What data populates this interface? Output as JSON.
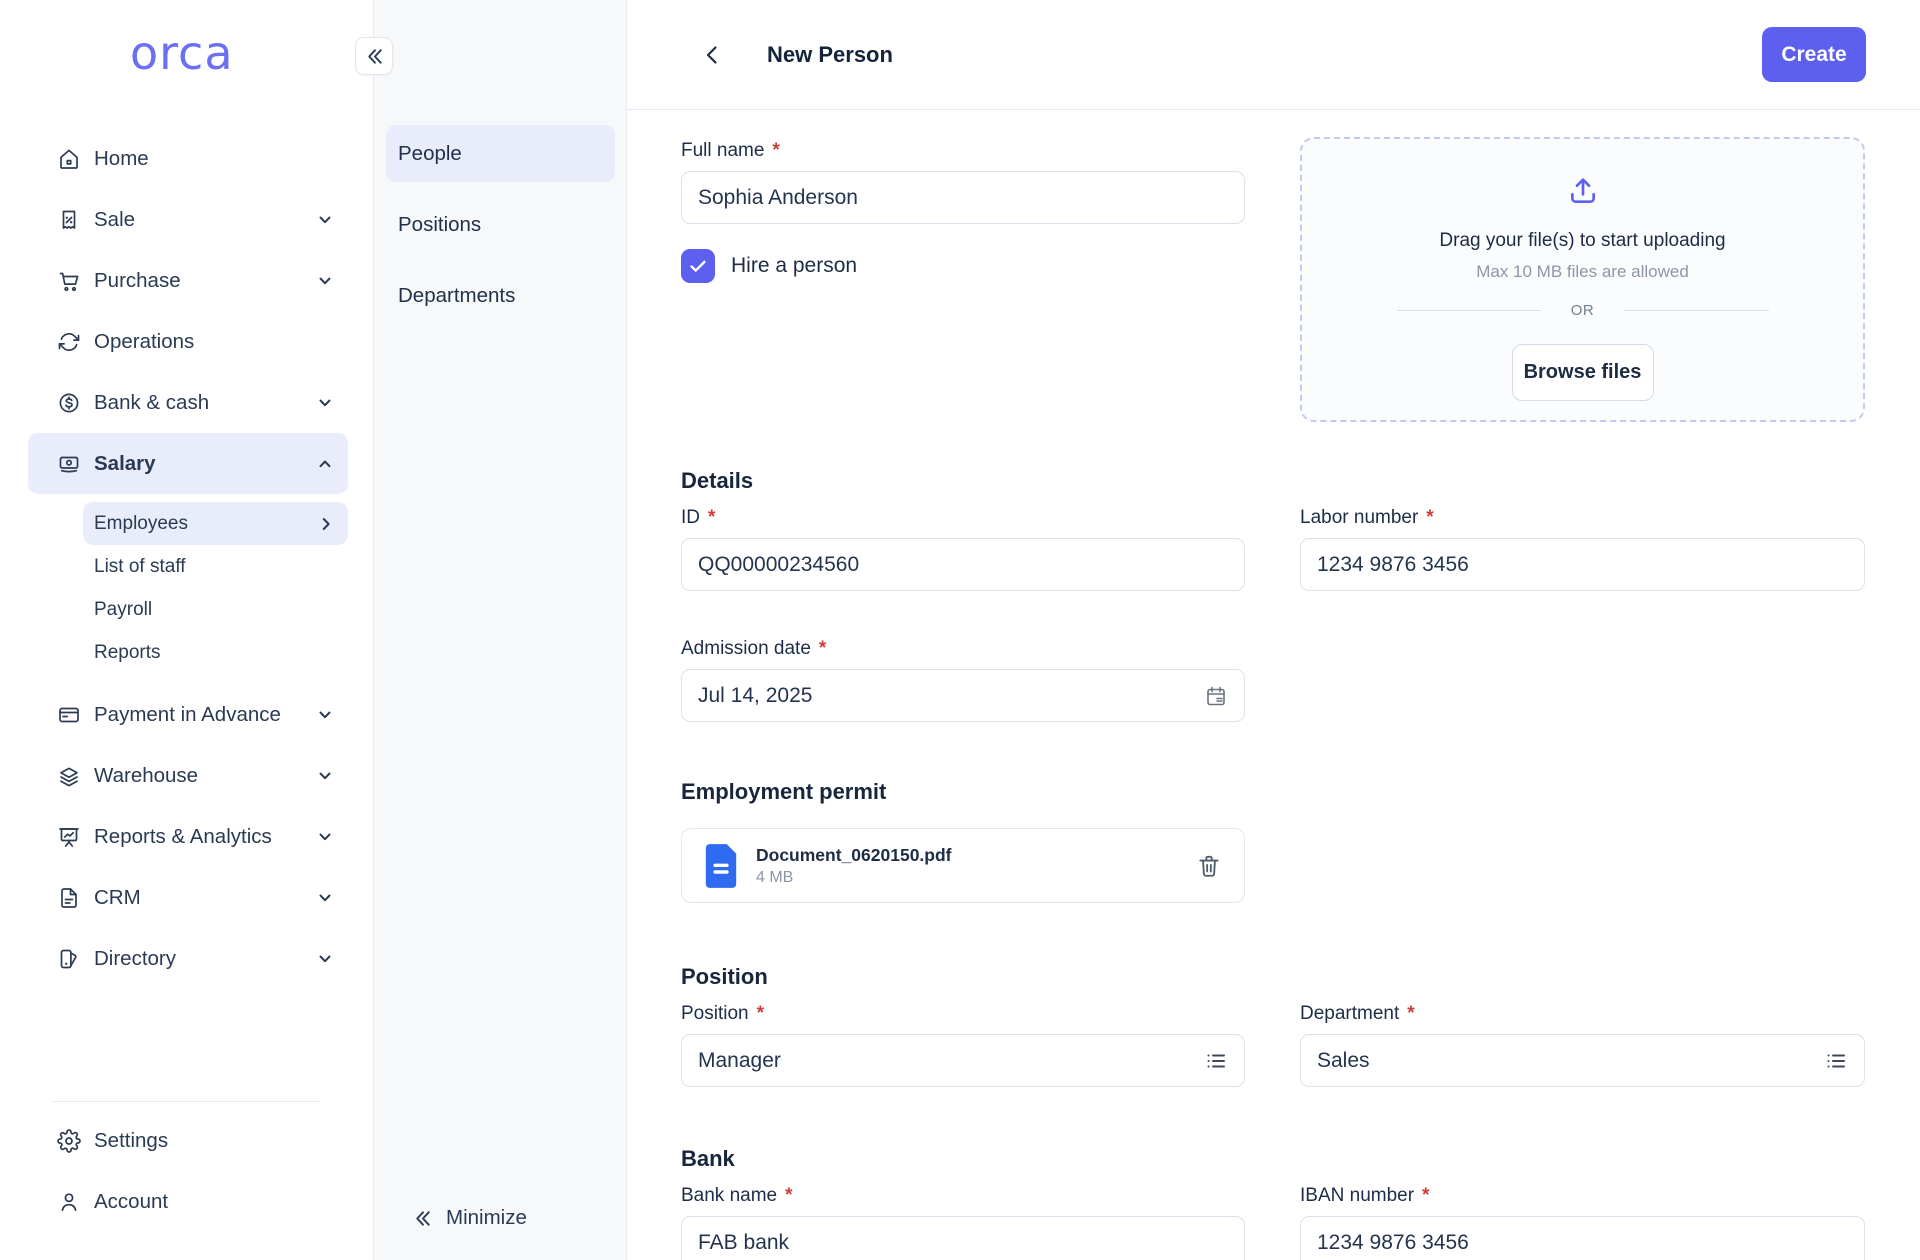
{
  "brand": {
    "logo_text": "orca",
    "logo_color": "#6A6FF3"
  },
  "colors": {
    "accent": "#5D5FEF",
    "highlight": "#E9EDFB",
    "doc_blue": "#2F6BF0",
    "required_red": "#D03C3C"
  },
  "sidebar": {
    "items": [
      {
        "label": "Home",
        "icon": "home"
      },
      {
        "label": "Sale",
        "icon": "sale",
        "chevron": "down"
      },
      {
        "label": "Purchase",
        "icon": "purchase",
        "chevron": "down"
      },
      {
        "label": "Operations",
        "icon": "operations"
      },
      {
        "label": "Bank & cash",
        "icon": "bank-cash",
        "chevron": "down"
      },
      {
        "label": "Salary",
        "icon": "salary",
        "chevron": "up",
        "active": true,
        "children": [
          {
            "label": "Employees",
            "active": true,
            "chevron": "right"
          },
          {
            "label": "List of staff"
          },
          {
            "label": "Payroll"
          },
          {
            "label": "Reports"
          }
        ]
      },
      {
        "label": "Payment in Advance",
        "icon": "payment-advance",
        "chevron": "down"
      },
      {
        "label": "Warehouse",
        "icon": "warehouse",
        "chevron": "down"
      },
      {
        "label": "Reports & Analytics",
        "icon": "reports-analytics",
        "chevron": "down"
      },
      {
        "label": "CRM",
        "icon": "crm",
        "chevron": "down"
      },
      {
        "label": "Directory",
        "icon": "directory",
        "chevron": "down"
      }
    ],
    "footer_items": [
      {
        "label": "Settings",
        "icon": "settings"
      },
      {
        "label": "Account",
        "icon": "account"
      }
    ]
  },
  "subpanel": {
    "items": [
      {
        "label": "People",
        "active": true
      },
      {
        "label": "Positions"
      },
      {
        "label": "Departments"
      }
    ],
    "minimize_label": "Minimize"
  },
  "header": {
    "title": "New Person",
    "create_label": "Create"
  },
  "form": {
    "required_marker": "*",
    "full_name": {
      "label": "Full name",
      "value": "Sophia Anderson"
    },
    "hire": {
      "label": "Hire a person",
      "checked": true
    },
    "upload": {
      "title": "Drag your file(s) to start uploading",
      "subtitle": "Max 10 MB files are allowed",
      "or_text": "OR",
      "browse_label": "Browse files"
    },
    "details": {
      "heading": "Details",
      "id": {
        "label": "ID",
        "value": "QQ00000234560"
      },
      "labor": {
        "label": "Labor number",
        "value": "1234 9876 3456"
      },
      "admission": {
        "label": "Admission date",
        "value": "Jul 14, 2025"
      }
    },
    "permit": {
      "heading": "Employment permit",
      "file": {
        "name": "Document_0620150.pdf",
        "size": "4 MB"
      }
    },
    "position": {
      "heading": "Position",
      "position": {
        "label": "Position",
        "value": "Manager"
      },
      "department": {
        "label": "Department",
        "value": "Sales"
      }
    },
    "bank": {
      "heading": "Bank",
      "bank_name": {
        "label": "Bank name",
        "value": "FAB bank"
      },
      "iban": {
        "label": "IBAN number",
        "value": "1234 9876 3456"
      }
    }
  }
}
